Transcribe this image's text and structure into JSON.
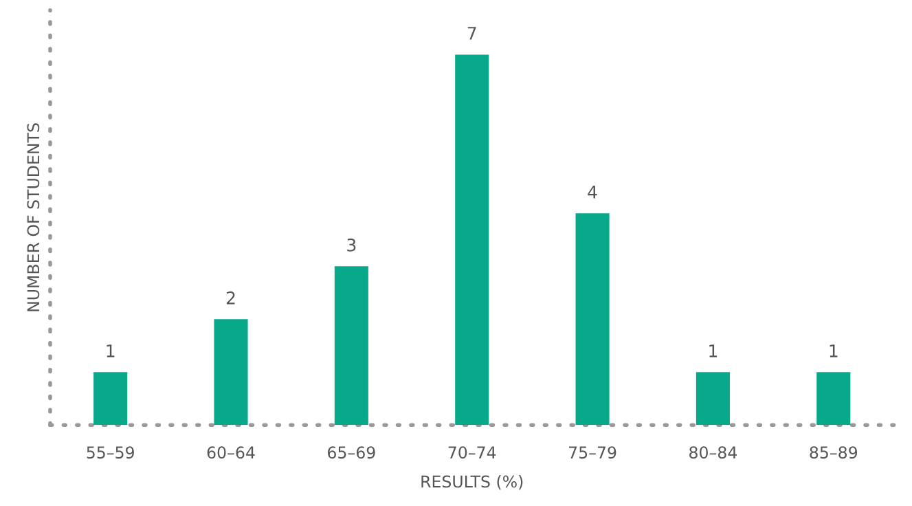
{
  "chart_data": {
    "type": "bar",
    "xlabel": "RESULTS (%)",
    "ylabel": "NUMBER OF STUDENTS",
    "categories": [
      "55–59",
      "60–64",
      "65–69",
      "70–74",
      "75–79",
      "80–84",
      "85–89"
    ],
    "values": [
      1,
      2,
      3,
      7,
      4,
      1,
      1
    ],
    "color": "#07a98a",
    "data_labels": true,
    "grid": false
  }
}
